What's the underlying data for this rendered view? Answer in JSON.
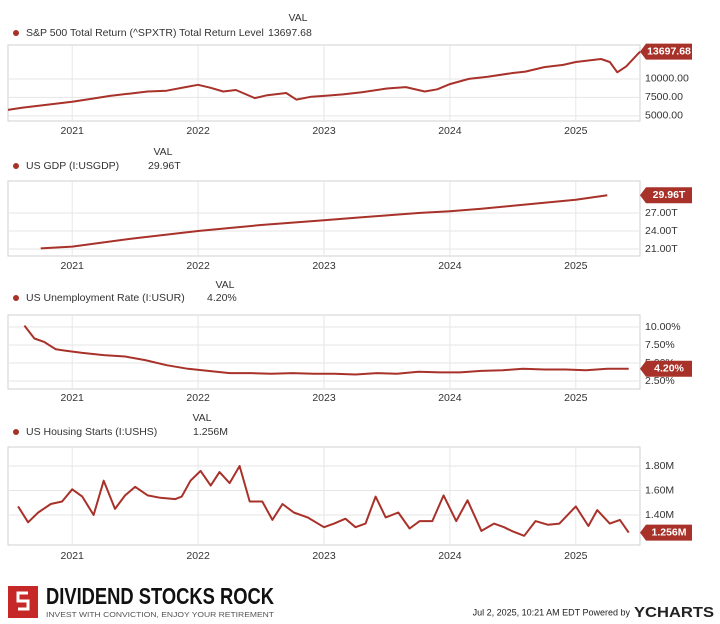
{
  "chart_data": [
    {
      "type": "line",
      "legend_header": "VAL",
      "series": [
        {
          "name": "S&P 500 Total Return (^SPXTR) Total Return Level",
          "color": "#a8322a",
          "values": [
            5800,
            6100,
            6400,
            6700,
            6900,
            7300,
            7700,
            8000,
            8300,
            8400,
            8900,
            9200,
            8800,
            8300,
            8500,
            7400,
            7800,
            8100,
            7200,
            7600,
            7700,
            7900,
            8200,
            8700,
            8900,
            8300,
            8600,
            9300,
            10000,
            10300,
            10800,
            11000,
            11600,
            11900,
            12300,
            12500,
            12700,
            12300,
            10900,
            11700,
            12600,
            13697.68
          ]
        }
      ],
      "x": [
        2020.49,
        2020.6,
        2020.75,
        2020.9,
        2021.0,
        2021.15,
        2021.3,
        2021.45,
        2021.6,
        2021.75,
        2021.9,
        2022.0,
        2022.1,
        2022.2,
        2022.3,
        2022.45,
        2022.55,
        2022.7,
        2022.78,
        2022.9,
        2023.0,
        2023.15,
        2023.3,
        2023.5,
        2023.65,
        2023.8,
        2023.9,
        2024.0,
        2024.15,
        2024.3,
        2024.5,
        2024.6,
        2024.75,
        2024.9,
        2025.0,
        2025.1,
        2025.2,
        2025.27,
        2025.33,
        2025.4,
        2025.45,
        2025.51
      ],
      "xlim": [
        2020.49,
        2025.51
      ],
      "xticks": [
        2021,
        2022,
        2023,
        2024,
        2025
      ],
      "ylim": [
        4300,
        14600
      ],
      "yticks": [
        {
          "value": 5000,
          "label": "5000.00"
        },
        {
          "value": 7500,
          "label": "7500.00"
        },
        {
          "value": 10000,
          "label": "10000.00"
        }
      ],
      "grid": true
    },
    {
      "type": "line",
      "legend_header": "VAL",
      "series": [
        {
          "name": "US GDP (I:USGDP)",
          "color": "#a8322a",
          "values": [
            21.1,
            21.4,
            22.1,
            22.8,
            23.4,
            24.0,
            24.5,
            25.0,
            25.4,
            25.8,
            26.2,
            26.6,
            27.0,
            27.3,
            27.7,
            28.2,
            28.7,
            29.2,
            29.96
          ],
          "value_labels": [
            null,
            null,
            null,
            null,
            null,
            null,
            null,
            null,
            null,
            null,
            null,
            null,
            null,
            null,
            null,
            null,
            null,
            null,
            "29.96T"
          ]
        }
      ],
      "x": [
        2020.75,
        2021.0,
        2021.25,
        2021.5,
        2021.75,
        2022.0,
        2022.25,
        2022.5,
        2022.75,
        2023.0,
        2023.25,
        2023.5,
        2023.75,
        2024.0,
        2024.25,
        2024.5,
        2024.75,
        2025.0,
        2025.25
      ],
      "xlim": [
        2020.49,
        2025.51
      ],
      "xticks": [
        2021,
        2022,
        2023,
        2024,
        2025
      ],
      "ylim": [
        19.83,
        32.33
      ],
      "yticks": [
        {
          "value": 21,
          "label": "21.00T"
        },
        {
          "value": 24,
          "label": "24.00T"
        },
        {
          "value": 27,
          "label": "27.00T"
        }
      ],
      "grid": true
    },
    {
      "type": "line",
      "legend_header": "VAL",
      "series": [
        {
          "name": "US Unemployment Rate (I:USUR)",
          "color": "#a8322a",
          "values": [
            10.2,
            8.4,
            7.9,
            6.9,
            6.7,
            6.4,
            6.1,
            5.9,
            5.4,
            4.7,
            4.2,
            3.9,
            3.6,
            3.6,
            3.5,
            3.6,
            3.5,
            3.5,
            3.4,
            3.6,
            3.5,
            3.8,
            3.7,
            3.7,
            3.9,
            4.0,
            4.2,
            4.1,
            4.1,
            4.0,
            4.2,
            4.2
          ],
          "value_labels": [
            null,
            null,
            null,
            null,
            null,
            null,
            null,
            null,
            null,
            null,
            null,
            null,
            null,
            null,
            null,
            null,
            null,
            null,
            null,
            null,
            null,
            null,
            null,
            null,
            null,
            null,
            null,
            null,
            null,
            null,
            null,
            "4.20%"
          ]
        }
      ],
      "x": [
        2020.62,
        2020.7,
        2020.78,
        2020.87,
        2020.95,
        2021.08,
        2021.25,
        2021.42,
        2021.58,
        2021.75,
        2021.92,
        2022.08,
        2022.25,
        2022.42,
        2022.58,
        2022.75,
        2022.92,
        2023.08,
        2023.25,
        2023.42,
        2023.58,
        2023.75,
        2023.92,
        2024.08,
        2024.25,
        2024.42,
        2024.58,
        2024.75,
        2024.92,
        2025.08,
        2025.25,
        2025.42
      ],
      "xlim": [
        2020.49,
        2025.51
      ],
      "xticks": [
        2021,
        2022,
        2023,
        2024,
        2025
      ],
      "ylim": [
        1.39,
        11.67
      ],
      "yticks": [
        {
          "value": 2.5,
          "label": "2.50%"
        },
        {
          "value": 5,
          "label": "5.00%"
        },
        {
          "value": 7.5,
          "label": "7.50%"
        },
        {
          "value": 10,
          "label": "10.00%"
        }
      ],
      "grid": true
    },
    {
      "type": "line",
      "legend_header": "VAL",
      "series": [
        {
          "name": "US Housing Starts (I:USHS)",
          "color": "#a8322a",
          "values": [
            1.47,
            1.34,
            1.42,
            1.49,
            1.51,
            1.61,
            1.55,
            1.4,
            1.68,
            1.45,
            1.56,
            1.63,
            1.56,
            1.54,
            1.53,
            1.55,
            1.68,
            1.76,
            1.64,
            1.75,
            1.66,
            1.8,
            1.51,
            1.51,
            1.36,
            1.49,
            1.42,
            1.38,
            1.3,
            1.33,
            1.37,
            1.3,
            1.33,
            1.55,
            1.38,
            1.42,
            1.29,
            1.35,
            1.35,
            1.56,
            1.35,
            1.52,
            1.27,
            1.33,
            1.3,
            1.27,
            1.23,
            1.35,
            1.32,
            1.33,
            1.47,
            1.31,
            1.44,
            1.33,
            1.36,
            1.256
          ],
          "value_labels": [
            null,
            null,
            null,
            null,
            null,
            null,
            null,
            null,
            null,
            null,
            null,
            null,
            null,
            null,
            null,
            null,
            null,
            null,
            null,
            null,
            null,
            null,
            null,
            null,
            null,
            null,
            null,
            null,
            null,
            null,
            null,
            null,
            null,
            null,
            null,
            null,
            null,
            null,
            null,
            null,
            null,
            null,
            null,
            null,
            null,
            null,
            null,
            null,
            null,
            null,
            null,
            null,
            null,
            null,
            null,
            "1.256M"
          ]
        }
      ],
      "x": [
        2020.57,
        2020.65,
        2020.73,
        2020.83,
        2020.92,
        2021.0,
        2021.08,
        2021.17,
        2021.25,
        2021.34,
        2021.42,
        2021.5,
        2021.6,
        2021.7,
        2021.82,
        2021.87,
        2021.94,
        2022.02,
        2022.1,
        2022.17,
        2022.25,
        2022.33,
        2022.41,
        2022.51,
        2022.59,
        2022.67,
        2022.76,
        2022.87,
        2023.0,
        2023.08,
        2023.17,
        2023.25,
        2023.33,
        2023.41,
        2023.49,
        2023.59,
        2023.68,
        2023.76,
        2023.86,
        2023.95,
        2024.05,
        2024.14,
        2024.25,
        2024.35,
        2024.43,
        2024.49,
        2024.59,
        2024.68,
        2024.78,
        2024.87,
        2025.0,
        2025.1,
        2025.17,
        2025.27,
        2025.35,
        2025.42
      ],
      "xlim": [
        2020.49,
        2025.51
      ],
      "xticks": [
        2021,
        2022,
        2023,
        2024,
        2025
      ],
      "ylim": [
        1.155,
        1.955
      ],
      "yticks": [
        {
          "value": 1.4,
          "label": "1.40M"
        },
        {
          "value": 1.6,
          "label": "1.60M"
        },
        {
          "value": 1.8,
          "label": "1.80M"
        }
      ],
      "grid": true
    }
  ],
  "footer": {
    "brand": "DIVIDEND STOCKS ROCK",
    "tagline": "INVEST WITH CONVICTION, ENJOY YOUR RETIREMENT",
    "timestamp": "Jul 2, 2025, 10:21 AM EDT Powered by",
    "provider": "YCHARTS"
  }
}
